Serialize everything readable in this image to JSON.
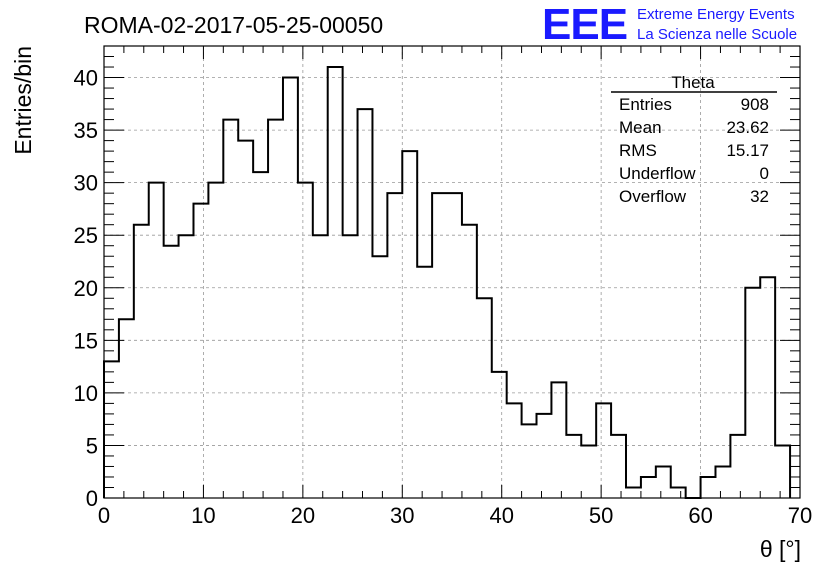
{
  "title": "ROMA-02-2017-05-25-00050",
  "logo": {
    "text": "EEE",
    "line1": "Extreme Energy Events",
    "line2": "La Scienza nelle Scuole",
    "color": "#1a1aff"
  },
  "stats": {
    "name": "Theta",
    "rows": [
      {
        "label": "Entries",
        "value": "908"
      },
      {
        "label": "Mean",
        "value": "23.62"
      },
      {
        "label": "RMS",
        "value": "15.17"
      },
      {
        "label": "Underflow",
        "value": "0"
      },
      {
        "label": "Overflow",
        "value": "32"
      }
    ]
  },
  "chart_data": {
    "type": "bar",
    "histogram": true,
    "title": "ROMA-02-2017-05-25-00050",
    "xlabel": "θ [°]",
    "ylabel": "Entries/bin",
    "xlim": [
      0,
      70
    ],
    "ylim": [
      0,
      43
    ],
    "bin_width": 1.5,
    "bin_start": 0,
    "xticks": [
      0,
      10,
      20,
      30,
      40,
      50,
      60,
      70
    ],
    "yticks": [
      0,
      5,
      10,
      15,
      20,
      25,
      30,
      35,
      40
    ],
    "values": [
      13,
      17,
      26,
      30,
      24,
      25,
      28,
      30,
      36,
      34,
      31,
      36,
      40,
      30,
      25,
      41,
      25,
      37,
      23,
      29,
      33,
      22,
      29,
      29,
      26,
      19,
      12,
      9,
      7,
      8,
      11,
      6,
      5,
      9,
      6,
      1,
      2,
      3,
      1,
      0,
      2,
      3,
      6,
      20,
      21,
      5
    ],
    "grid": true,
    "line_color": "#000000",
    "grid_color": "#999999"
  }
}
